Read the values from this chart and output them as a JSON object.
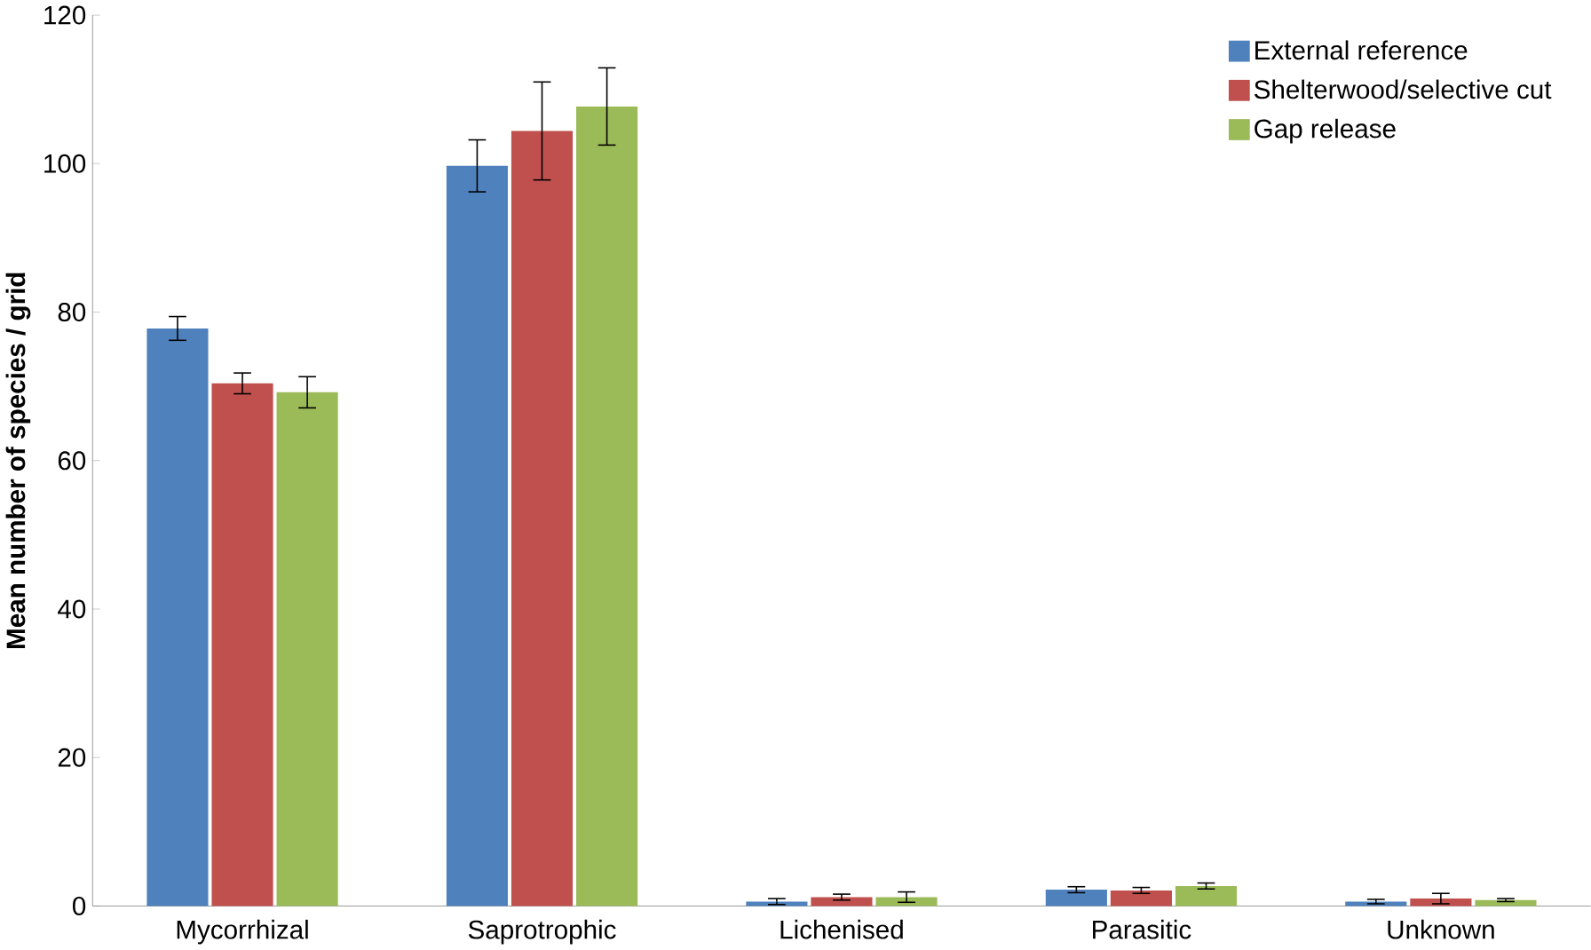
{
  "chart_data": {
    "type": "bar",
    "ylabel": "Mean number of species / grid",
    "categories": [
      "Mycorrhizal",
      "Saprotrophic",
      "Lichenised",
      "Parasitic",
      "Unknown"
    ],
    "series": [
      {
        "name": "External reference",
        "color": "#4f81bd",
        "values": [
          77.8,
          99.7,
          0.6,
          2.2,
          0.6
        ],
        "errors": [
          1.6,
          3.5,
          0.4,
          0.4,
          0.3
        ]
      },
      {
        "name": "Shelterwood/selective cut",
        "color": "#c0504d",
        "values": [
          70.4,
          104.4,
          1.2,
          2.1,
          1.0
        ],
        "errors": [
          1.4,
          6.6,
          0.4,
          0.4,
          0.7
        ]
      },
      {
        "name": "Gap release",
        "color": "#9bbb59",
        "values": [
          69.2,
          107.7,
          1.2,
          2.7,
          0.8
        ],
        "errors": [
          2.1,
          5.2,
          0.7,
          0.4,
          0.2
        ]
      }
    ],
    "ylim": [
      0,
      120
    ],
    "yticks": [
      0,
      20,
      40,
      60,
      80,
      100,
      120
    ],
    "grid": false,
    "legend": "top right"
  }
}
